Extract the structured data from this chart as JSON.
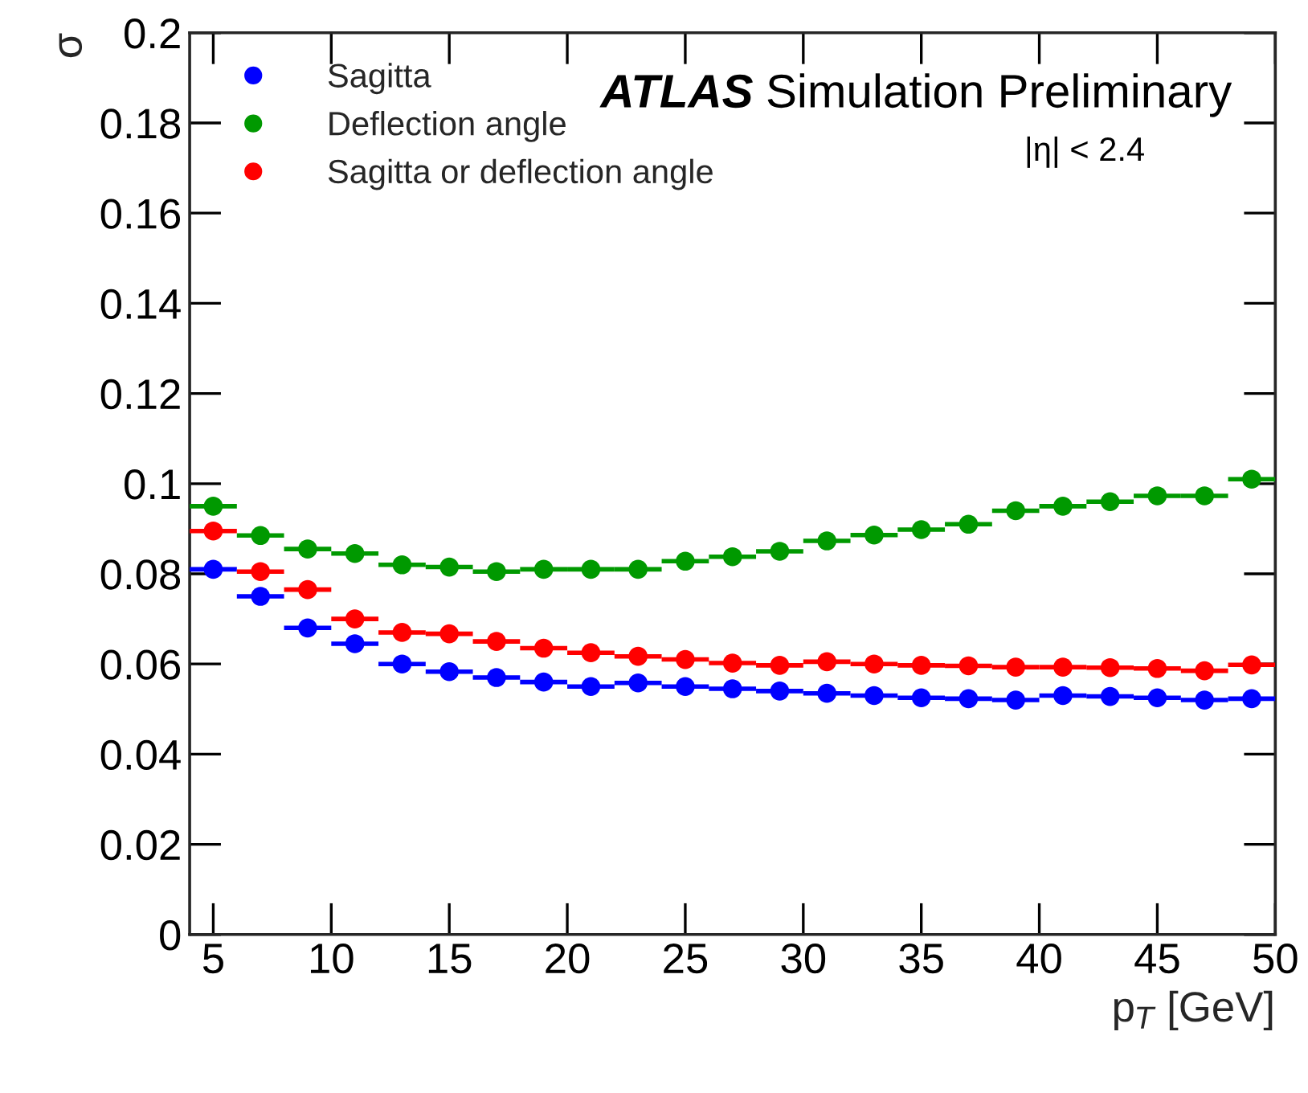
{
  "chart_data": {
    "type": "scatter",
    "xlabel": "p$_{T}$ [GeV]",
    "ylabel": "σ",
    "annotations": [
      "ATLAS",
      "Simulation Preliminary",
      "|η| < 2.4"
    ],
    "x": [
      5,
      7,
      9,
      11,
      13,
      15,
      17,
      19,
      21,
      23,
      25,
      27,
      29,
      31,
      33,
      35,
      37,
      39,
      41,
      43,
      45,
      47,
      49
    ],
    "series": [
      {
        "name": "Sagitta",
        "color": "#0000ff",
        "values": [
          0.081,
          0.075,
          0.068,
          0.0645,
          0.06,
          0.0583,
          0.057,
          0.056,
          0.055,
          0.0558,
          0.055,
          0.0545,
          0.054,
          0.0535,
          0.053,
          0.0525,
          0.0523,
          0.052,
          0.053,
          0.0528,
          0.0525,
          0.052,
          0.0523
        ],
        "xerrors": [
          1,
          1,
          1,
          1,
          1,
          1,
          1,
          1,
          1,
          1,
          1,
          1,
          1,
          1,
          1,
          1,
          1,
          1,
          1,
          1,
          1,
          1,
          1
        ]
      },
      {
        "name": "Deflection angle",
        "color": "#009900",
        "values": [
          0.095,
          0.0885,
          0.0855,
          0.0845,
          0.082,
          0.0815,
          0.0805,
          0.081,
          0.081,
          0.081,
          0.0828,
          0.0838,
          0.085,
          0.0873,
          0.0886,
          0.0898,
          0.091,
          0.094,
          0.095,
          0.096,
          0.0973,
          0.0973,
          0.101
        ],
        "xerrors": [
          1,
          1,
          1,
          1,
          1,
          1,
          1,
          1,
          1,
          1,
          1,
          1,
          1,
          1,
          1,
          1,
          1,
          1,
          1,
          1,
          1,
          1,
          1
        ]
      },
      {
        "name": "Sagitta or deflection angle",
        "color": "#ff0000",
        "values": [
          0.0895,
          0.0805,
          0.0765,
          0.07,
          0.067,
          0.0667,
          0.065,
          0.0635,
          0.0625,
          0.0617,
          0.061,
          0.0602,
          0.0597,
          0.0605,
          0.06,
          0.0597,
          0.0596,
          0.0593,
          0.0593,
          0.0592,
          0.059,
          0.0585,
          0.0598
        ],
        "xerrors": [
          1,
          1,
          1,
          1,
          1,
          1,
          1,
          1,
          1,
          1,
          1,
          1,
          1,
          1,
          1,
          1,
          1,
          1,
          1,
          1,
          1,
          1,
          1
        ]
      }
    ],
    "xlim": [
      4,
      50
    ],
    "xticks": [
      5,
      10,
      15,
      20,
      25,
      30,
      35,
      40,
      45,
      50
    ],
    "ylim": [
      0,
      0.2
    ],
    "yticks": [
      0,
      0.02,
      0.04,
      0.06,
      0.08,
      0.1,
      0.12,
      0.14,
      0.16,
      0.18,
      0.2
    ],
    "marker": "circle",
    "legend": "top left",
    "grid": false
  }
}
